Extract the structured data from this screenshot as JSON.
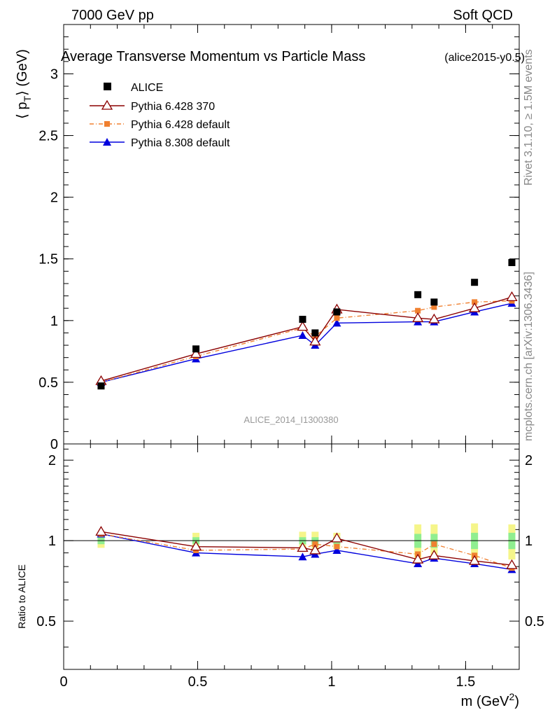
{
  "header": {
    "left": "7000 GeV pp",
    "right": "Soft QCD"
  },
  "side_labels": {
    "rivet": "Rivet 3.1.10, ≥ 1.5M events",
    "mcplots": "mcplots.cern.ch [arXiv:1306.3436]"
  },
  "chart_data": {
    "type": "scatter",
    "title": "Average Transverse Momentum vs Particle Mass",
    "title_tag": "(alice2015-y0.5)",
    "watermark": "ALICE_2014_I1300380",
    "xlabel": "m (GeV²)",
    "xlabel_base": "m (GeV",
    "xlabel_sup": "2",
    "xlabel_close": ")",
    "ylabel": "⟨ p_T ⟩ (GeV)",
    "ylabel_base": "⟨ p",
    "ylabel_sub": "T",
    "ylabel_close": "⟩ (GeV)",
    "ratio_ylabel": "Ratio to ALICE",
    "xlim": [
      0,
      1.7
    ],
    "ylim": [
      0,
      3.4
    ],
    "ratio_ylim": [
      0.33,
      2.3
    ],
    "ratio_scale": "log",
    "x_ticks": [
      "0",
      "0.5",
      "1",
      "1.5"
    ],
    "x_tick_values": [
      0,
      0.5,
      1,
      1.5
    ],
    "y_ticks": [
      "0",
      "0.5",
      "1",
      "1.5",
      "2",
      "2.5",
      "3"
    ],
    "y_tick_values": [
      0,
      0.5,
      1,
      1.5,
      2,
      2.5,
      3
    ],
    "ratio_ticks": [
      "0.5",
      "1",
      "2"
    ],
    "ratio_tick_values": [
      0.5,
      1,
      2
    ],
    "legend_position": "top-left",
    "x": [
      0.1396,
      0.4937,
      0.8917,
      0.9383,
      1.0195,
      1.3217,
      1.3824,
      1.5332,
      1.6725
    ],
    "data": {
      "name": "ALICE",
      "values": [
        0.47,
        0.77,
        1.01,
        0.9,
        1.07,
        1.21,
        1.15,
        1.31,
        1.47
      ],
      "ratio_band_inner": [
        0.03,
        0.03,
        0.03,
        0.03,
        0.03,
        0.06,
        0.06,
        0.07,
        0.07
      ],
      "ratio_band_outer": [
        0.06,
        0.07,
        0.08,
        0.08,
        0.07,
        0.15,
        0.15,
        0.16,
        0.15
      ]
    },
    "series": [
      {
        "name": "Pythia 6.428 370",
        "color": "#8b0000",
        "marker": "open-triangle",
        "linestyle": "solid",
        "values": [
          0.51,
          0.73,
          0.95,
          0.83,
          1.09,
          1.02,
          1.01,
          1.1,
          1.19
        ],
        "ratio": [
          1.08,
          0.95,
          0.94,
          0.92,
          1.02,
          0.85,
          0.88,
          0.84,
          0.81
        ]
      },
      {
        "name": "Pythia 6.428 default",
        "color": "#f08030",
        "marker": "square",
        "linestyle": "dashdot",
        "values": [
          0.5,
          0.71,
          0.94,
          0.87,
          1.02,
          1.08,
          1.11,
          1.15,
          1.16
        ],
        "ratio": [
          1.06,
          0.92,
          0.93,
          0.97,
          0.95,
          0.89,
          0.97,
          0.88,
          0.79
        ]
      },
      {
        "name": "Pythia 8.308 default",
        "color": "#0000dd",
        "marker": "triangle",
        "linestyle": "solid",
        "values": [
          0.5,
          0.69,
          0.88,
          0.8,
          0.98,
          0.99,
          0.99,
          1.07,
          1.14
        ],
        "ratio": [
          1.06,
          0.9,
          0.87,
          0.89,
          0.92,
          0.82,
          0.86,
          0.82,
          0.78
        ]
      }
    ],
    "colors": {
      "band_inner": "#90ee90",
      "band_outer": "#f5f58a",
      "data_marker": "#000000"
    }
  }
}
